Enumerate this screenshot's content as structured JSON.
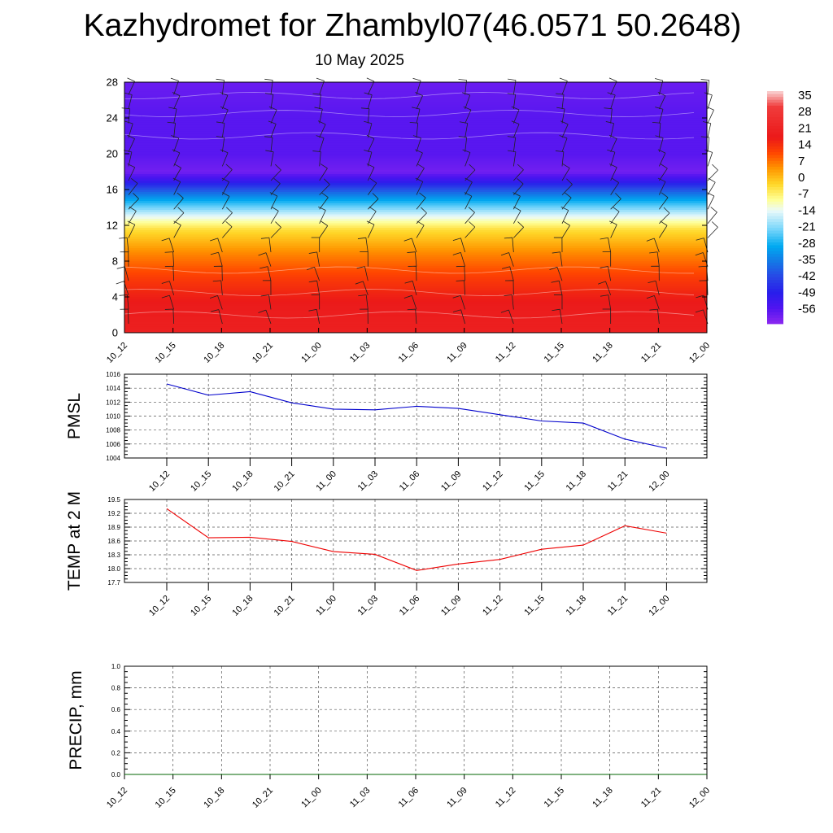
{
  "header": {
    "title": "Kazhydromet for Zhambyl07(46.0571 50.2648)",
    "date": "10 May 2025"
  },
  "time_labels": [
    "10_12",
    "10_15",
    "10_18",
    "10_21",
    "11_00",
    "11_03",
    "11_06",
    "11_09",
    "11_12",
    "11_15",
    "11_18",
    "11_21",
    "12_00"
  ],
  "colors": {
    "pmsl_line": "#0000cc",
    "temp_line": "#ee0000",
    "precip_line": "#006400",
    "grid": "#555555"
  },
  "chart_data": [
    {
      "type": "heatmap",
      "title": "",
      "yticks": [
        "0",
        "4",
        "8",
        "12",
        "16",
        "20",
        "24",
        "28"
      ],
      "ylim": [
        0,
        28
      ],
      "x": [
        "10_12",
        "10_15",
        "10_18",
        "10_21",
        "11_00",
        "11_03",
        "11_06",
        "11_09",
        "11_12",
        "11_15",
        "11_18",
        "11_21",
        "12_00"
      ],
      "colorbar": {
        "labels": [
          "35",
          "28",
          "21",
          "14",
          "7",
          "0",
          "-7",
          "-14",
          "-21",
          "-28",
          "-35",
          "-42",
          "-49",
          "-56"
        ],
        "range": [
          -63,
          42
        ]
      },
      "vertical_profile": [
        {
          "level": 0,
          "value": 24
        },
        {
          "level": 3,
          "value": 22
        },
        {
          "level": 6,
          "value": 16
        },
        {
          "level": 9,
          "value": 8
        },
        {
          "level": 11.5,
          "value": -1
        },
        {
          "level": 13,
          "value": -12
        },
        {
          "level": 14.5,
          "value": -25
        },
        {
          "level": 16,
          "value": -40
        },
        {
          "level": 17,
          "value": -52
        },
        {
          "level": 18,
          "value": -60
        },
        {
          "level": 20,
          "value": -57
        },
        {
          "level": 24,
          "value": -57
        },
        {
          "level": 28,
          "value": -59
        }
      ],
      "wind_barbs": "shown"
    },
    {
      "type": "line",
      "ylabel": "PMSL",
      "categories": [
        "10_12",
        "10_15",
        "10_18",
        "10_21",
        "11_00",
        "11_03",
        "11_06",
        "11_09",
        "11_12",
        "11_15",
        "11_18",
        "11_21",
        "12_00"
      ],
      "series": [
        {
          "values": [
            1014.6,
            1013.0,
            1013.5,
            1011.9,
            1011.0,
            1010.9,
            1011.4,
            1011.1,
            1010.2,
            1009.3,
            1009.0,
            1006.7,
            1005.4
          ]
        }
      ],
      "ylim": [
        1004,
        1016
      ],
      "yticks": [
        "1004",
        "1006",
        "1008",
        "1010",
        "1012",
        "1014",
        "1016"
      ],
      "grid": true
    },
    {
      "type": "line",
      "ylabel": "TEMP at 2 M",
      "categories": [
        "10_12",
        "10_15",
        "10_18",
        "10_21",
        "11_00",
        "11_03",
        "11_06",
        "11_09",
        "11_12",
        "11_15",
        "11_18",
        "11_21",
        "12_00"
      ],
      "series": [
        {
          "values": [
            19.3,
            18.67,
            18.68,
            18.59,
            18.37,
            18.31,
            17.96,
            18.1,
            18.2,
            18.42,
            18.51,
            18.93,
            18.77
          ]
        }
      ],
      "ylim": [
        17.7,
        19.5
      ],
      "yticks": [
        "17.7",
        "18.0",
        "18.3",
        "18.6",
        "18.9",
        "19.2",
        "19.5"
      ],
      "grid": true
    },
    {
      "type": "line",
      "ylabel": "PRECIP, mm",
      "categories": [
        "10_12",
        "10_15",
        "10_18",
        "10_21",
        "11_00",
        "11_03",
        "11_06",
        "11_09",
        "11_12",
        "11_15",
        "11_18",
        "11_21",
        "12_00"
      ],
      "series": [
        {
          "values": [
            0,
            0,
            0,
            0,
            0,
            0,
            0,
            0,
            0,
            0,
            0,
            0,
            0
          ]
        }
      ],
      "ylim": [
        0,
        1
      ],
      "yticks": [
        "0.0",
        "0.2",
        "0.4",
        "0.6",
        "0.8",
        "1.0"
      ],
      "grid": true
    }
  ]
}
